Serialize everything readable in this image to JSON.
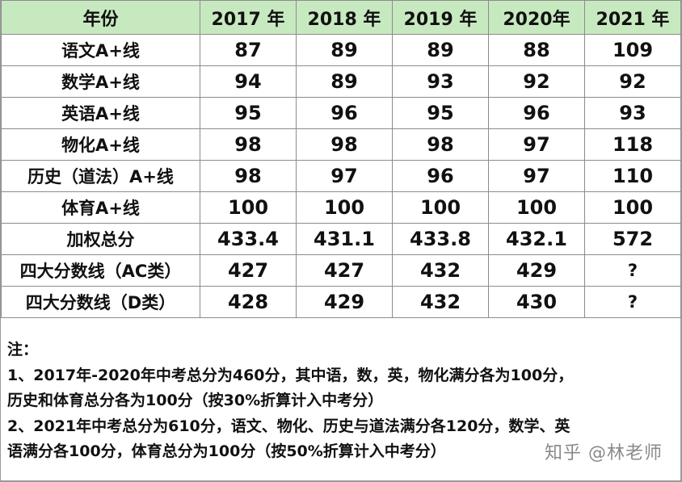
{
  "table": {
    "headers": [
      "年份",
      "2017 年",
      "2018 年",
      "2019 年",
      "2020年",
      "2021 年"
    ],
    "rows": [
      {
        "label": "语文A+线",
        "values": [
          "87",
          "89",
          "89",
          "88",
          "109"
        ]
      },
      {
        "label": "数学A+线",
        "values": [
          "94",
          "89",
          "93",
          "92",
          "92"
        ]
      },
      {
        "label": "英语A+线",
        "values": [
          "95",
          "96",
          "95",
          "96",
          "93"
        ]
      },
      {
        "label": "物化A+线",
        "values": [
          "98",
          "98",
          "98",
          "97",
          "118"
        ]
      },
      {
        "label": "历史（道法）A+线",
        "values": [
          "98",
          "97",
          "96",
          "97",
          "110"
        ]
      },
      {
        "label": "体育A+线",
        "values": [
          "100",
          "100",
          "100",
          "100",
          "100"
        ]
      },
      {
        "label": "加权总分",
        "values": [
          "433.4",
          "431.1",
          "433.8",
          "432.1",
          "572"
        ]
      },
      {
        "label": "四大分数线（AC类）",
        "values": [
          "427",
          "427",
          "432",
          "429",
          "?"
        ]
      },
      {
        "label": "四大分数线（D类）",
        "values": [
          "428",
          "429",
          "432",
          "430",
          "?"
        ]
      }
    ]
  },
  "notes": {
    "title": "注：",
    "lines": [
      "1、2017年-2020年中考总分为460分，其中语，数，英，物化满分各为100分，",
      "历史和体育总分各为100分（按30%折算计入中考分）",
      "2、2021年中考总分为610分，语文、物化、历史与道法满分各120分，数学、英",
      "语满分各100分，体育总分为100分（按50%折算计入中考分）"
    ]
  },
  "watermark": "知乎 @林老师",
  "colors": {
    "header_bg": "#c7e9c0",
    "border": "#8c8c8c",
    "text": "#111111"
  }
}
